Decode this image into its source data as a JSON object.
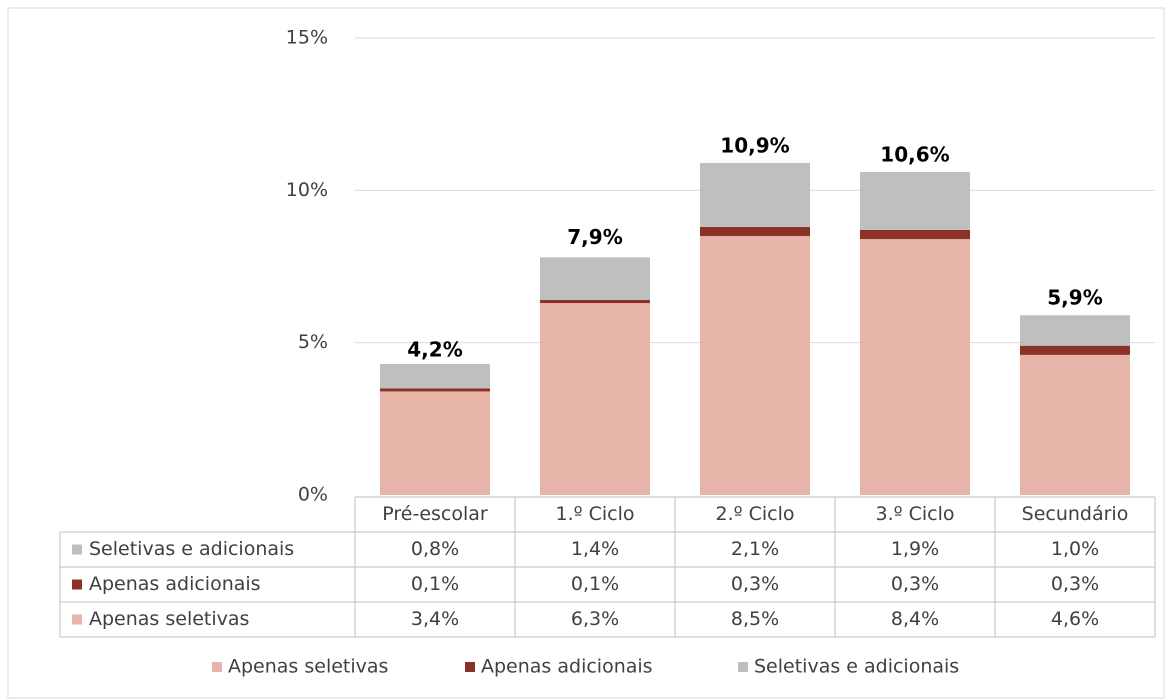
{
  "chart_data": {
    "type": "stacked_bar",
    "categories": [
      "Pré-escolar",
      "1.º Ciclo",
      "2.º Ciclo",
      "3.º Ciclo",
      "Secundário"
    ],
    "series": [
      {
        "name": "Apenas seletivas",
        "color": "#e6b4a8",
        "values": [
          3.4,
          6.3,
          8.5,
          8.4,
          4.6
        ],
        "value_labels": [
          "3,4%",
          "6,3%",
          "8,5%",
          "8,4%",
          "4,6%"
        ]
      },
      {
        "name": "Apenas adicionais",
        "color": "#8b3226",
        "values": [
          0.1,
          0.1,
          0.3,
          0.3,
          0.3
        ],
        "value_labels": [
          "0,1%",
          "0,1%",
          "0,3%",
          "0,3%",
          "0,3%"
        ]
      },
      {
        "name": "Seletivas e adicionais",
        "color": "#bfbfbf",
        "values": [
          0.8,
          1.4,
          2.1,
          1.9,
          1.0
        ],
        "value_labels": [
          "0,8%",
          "1,4%",
          "2,1%",
          "1,9%",
          "1,0%"
        ]
      }
    ],
    "totals": [
      4.2,
      7.9,
      10.9,
      10.6,
      5.9
    ],
    "total_labels": [
      "4,2%",
      "7,9%",
      "10,9%",
      "10,6%",
      "5,9%"
    ],
    "ylim": [
      0,
      15
    ],
    "yticks": [
      {
        "value": 0,
        "label": "0%"
      },
      {
        "value": 5,
        "label": "5%"
      },
      {
        "value": 10,
        "label": "10%"
      },
      {
        "value": 15,
        "label": "15%"
      }
    ],
    "grid": true,
    "legend": "bottom"
  }
}
